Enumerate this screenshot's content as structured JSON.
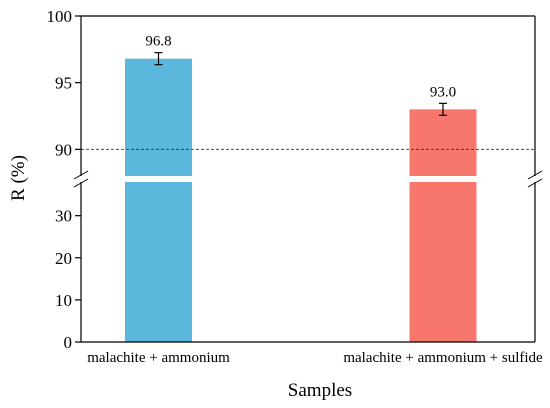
{
  "chart_data": {
    "type": "bar",
    "title": "",
    "xlabel": "Samples",
    "ylabel": "R (%)",
    "categories": [
      "malachite + ammonium",
      "malachite + ammonium + sulfide"
    ],
    "values": [
      96.8,
      93.0
    ],
    "errors": [
      0.45,
      0.45
    ],
    "value_labels": [
      "96.8",
      "93.0"
    ],
    "bar_colors": [
      "#5bb8dc",
      "#f8776c"
    ],
    "broken_axis": true,
    "lower_segment": {
      "ylim": [
        0,
        38
      ],
      "ticks": [
        0,
        10,
        20,
        30
      ],
      "tick_labels": [
        "0",
        "10",
        "20",
        "30"
      ]
    },
    "upper_segment": {
      "ylim": [
        88,
        100
      ],
      "ticks": [
        90,
        95,
        100
      ],
      "tick_labels": [
        "90",
        "95",
        "100"
      ]
    },
    "reference_line": {
      "y": 90,
      "style": "dashed"
    },
    "grid": false,
    "legend": "none"
  }
}
